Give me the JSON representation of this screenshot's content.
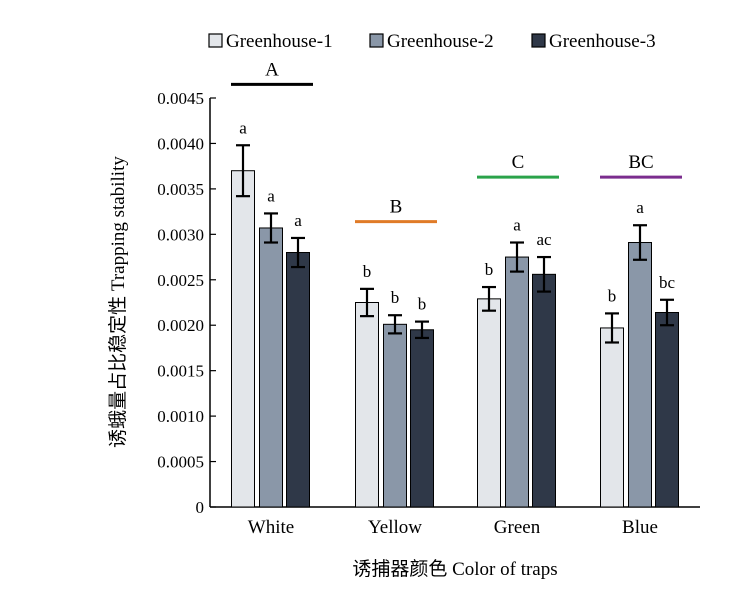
{
  "chart_data": {
    "type": "bar",
    "xlabel": "诱捕器颜色 Color of traps",
    "ylabel": "诱蛾量占比稳定性 Trapping stability",
    "ylim": [
      0,
      0.0045
    ],
    "yticks": [
      "0",
      "0.0005",
      "0.0010",
      "0.0015",
      "0.0020",
      "0.0025",
      "0.0030",
      "0.0035",
      "0.0040",
      "0.0045"
    ],
    "categories": [
      "White",
      "Yellow",
      "Green",
      "Blue"
    ],
    "legend_position": "top",
    "grid": false,
    "series": [
      {
        "name": "Greenhouse-1",
        "color": "#e3e6ea",
        "values": [
          0.0037,
          0.00225,
          0.00229,
          0.00197
        ],
        "errors": [
          0.00028,
          0.00015,
          0.00013,
          0.00016
        ],
        "labels": [
          "a",
          "b",
          "b",
          "b"
        ]
      },
      {
        "name": "Greenhouse-2",
        "color": "#8a97a8",
        "values": [
          0.00307,
          0.00201,
          0.00275,
          0.00291
        ],
        "errors": [
          0.00016,
          0.0001,
          0.00016,
          0.00019
        ],
        "labels": [
          "a",
          "b",
          "a",
          "a"
        ]
      },
      {
        "name": "Greenhouse-3",
        "color": "#2f3848",
        "values": [
          0.0028,
          0.00195,
          0.00256,
          0.00214
        ],
        "errors": [
          0.00016,
          9e-05,
          0.00019,
          0.00014
        ],
        "labels": [
          "a",
          "b",
          "ac",
          "bc"
        ]
      }
    ],
    "group_letters": [
      {
        "label": "A",
        "color": "#000000",
        "y": 0.00465
      },
      {
        "label": "B",
        "color": "#e07b28",
        "y": 0.00314
      },
      {
        "label": "C",
        "color": "#2aa34a",
        "y": 0.00363
      },
      {
        "label": "BC",
        "color": "#7b2d8e",
        "y": 0.00363
      }
    ]
  }
}
